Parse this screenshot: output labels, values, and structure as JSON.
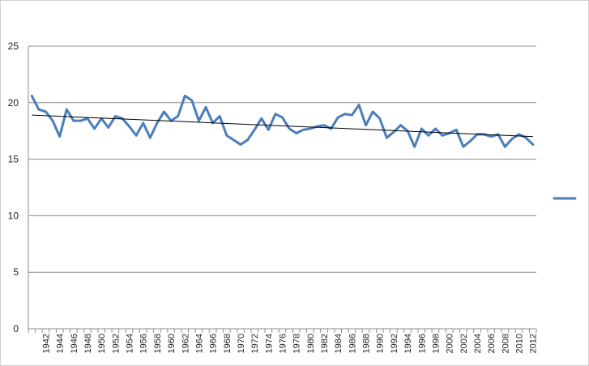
{
  "chart_data": {
    "type": "line",
    "title": "",
    "xlabel": "",
    "ylabel": "",
    "ylim": [
      0,
      25
    ],
    "yticks": [
      0,
      5,
      10,
      15,
      20,
      25
    ],
    "grid": true,
    "legend_position": "right",
    "x": [
      1940,
      1941,
      1942,
      1943,
      1944,
      1945,
      1946,
      1947,
      1948,
      1949,
      1950,
      1951,
      1952,
      1953,
      1954,
      1955,
      1956,
      1957,
      1958,
      1959,
      1960,
      1961,
      1962,
      1963,
      1964,
      1965,
      1966,
      1967,
      1968,
      1969,
      1970,
      1971,
      1972,
      1973,
      1974,
      1975,
      1976,
      1977,
      1978,
      1979,
      1980,
      1981,
      1982,
      1983,
      1984,
      1985,
      1986,
      1987,
      1988,
      1989,
      1990,
      1991,
      1992,
      1993,
      1994,
      1995,
      1996,
      1997,
      1998,
      1999,
      2000,
      2001,
      2002,
      2003,
      2004,
      2005,
      2006,
      2007,
      2008,
      2009,
      2010,
      2011,
      2012
    ],
    "x_tick_labels": [
      "1942",
      "1944",
      "1946",
      "1948",
      "1950",
      "1952",
      "1954",
      "1956",
      "1958",
      "1960",
      "1962",
      "1964",
      "1966",
      "1968",
      "1970",
      "1972",
      "1974",
      "1976",
      "1978",
      "1980",
      "1982",
      "1984",
      "1986",
      "1988",
      "1990",
      "1992",
      "1994",
      "1996",
      "1998",
      "2000",
      "2002",
      "2004",
      "2006",
      "2008",
      "2010",
      "2012"
    ],
    "series": [
      {
        "color": "#4a7ebb",
        "values": [
          20.6,
          19.4,
          19.2,
          18.4,
          17.0,
          19.4,
          18.4,
          18.4,
          18.6,
          17.7,
          18.6,
          17.8,
          18.8,
          18.6,
          17.9,
          17.1,
          18.2,
          16.9,
          18.2,
          19.2,
          18.4,
          18.8,
          20.6,
          20.2,
          18.4,
          19.6,
          18.2,
          18.8,
          17.1,
          16.7,
          16.3,
          16.7,
          17.6,
          18.6,
          17.6,
          19.0,
          18.7,
          17.7,
          17.3,
          17.6,
          17.7,
          17.9,
          18.0,
          17.7,
          18.7,
          19.0,
          18.9,
          19.8,
          18.0,
          19.2,
          18.6,
          16.9,
          17.4,
          18.0,
          17.5,
          16.1,
          17.7,
          17.1,
          17.7,
          17.1,
          17.3,
          17.6,
          16.1,
          16.6,
          17.2,
          17.2,
          17.0,
          17.2,
          16.1,
          16.8,
          17.2,
          16.9,
          16.3
        ]
      }
    ],
    "trendline": {
      "color": "#000000",
      "start": 18.9,
      "end": 17.0
    }
  }
}
